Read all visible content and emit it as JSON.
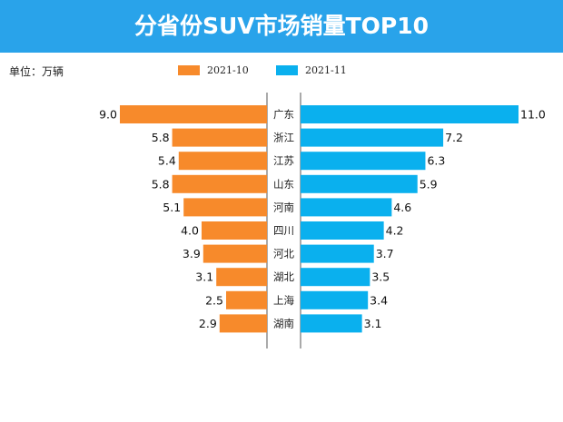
{
  "chart_data": {
    "type": "bar",
    "orientation": "horizontal-butterfly",
    "title": "分省份SUV市场销量TOP10",
    "unit_label": "单位：万辆",
    "categories": [
      "广东",
      "浙江",
      "江苏",
      "山东",
      "河南",
      "四川",
      "河北",
      "湖北",
      "上海",
      "湖南"
    ],
    "series": [
      {
        "name": "2021-10",
        "color": "#f78a2b",
        "values": [
          9.0,
          5.8,
          5.4,
          5.8,
          5.1,
          4.0,
          3.9,
          3.1,
          2.5,
          2.9
        ],
        "labels": [
          "9.0",
          "5.8",
          "5.4",
          "5.8",
          "5.1",
          "4.0",
          "3.9",
          "3.1",
          "2.5",
          "2.9"
        ]
      },
      {
        "name": "2021-11",
        "color": "#0ab0ee",
        "values": [
          11.0,
          7.2,
          6.3,
          5.9,
          4.6,
          4.2,
          3.7,
          3.5,
          3.4,
          3.1
        ],
        "labels": [
          "11.0",
          "7.2",
          "6.3",
          "5.9",
          "4.6",
          "4.2",
          "3.7",
          "3.5",
          "3.4",
          "3.1"
        ]
      }
    ],
    "xlim": [
      0,
      11
    ],
    "legend": "top-center",
    "grid": false
  },
  "theme": {
    "banner": "#29a3ea"
  }
}
